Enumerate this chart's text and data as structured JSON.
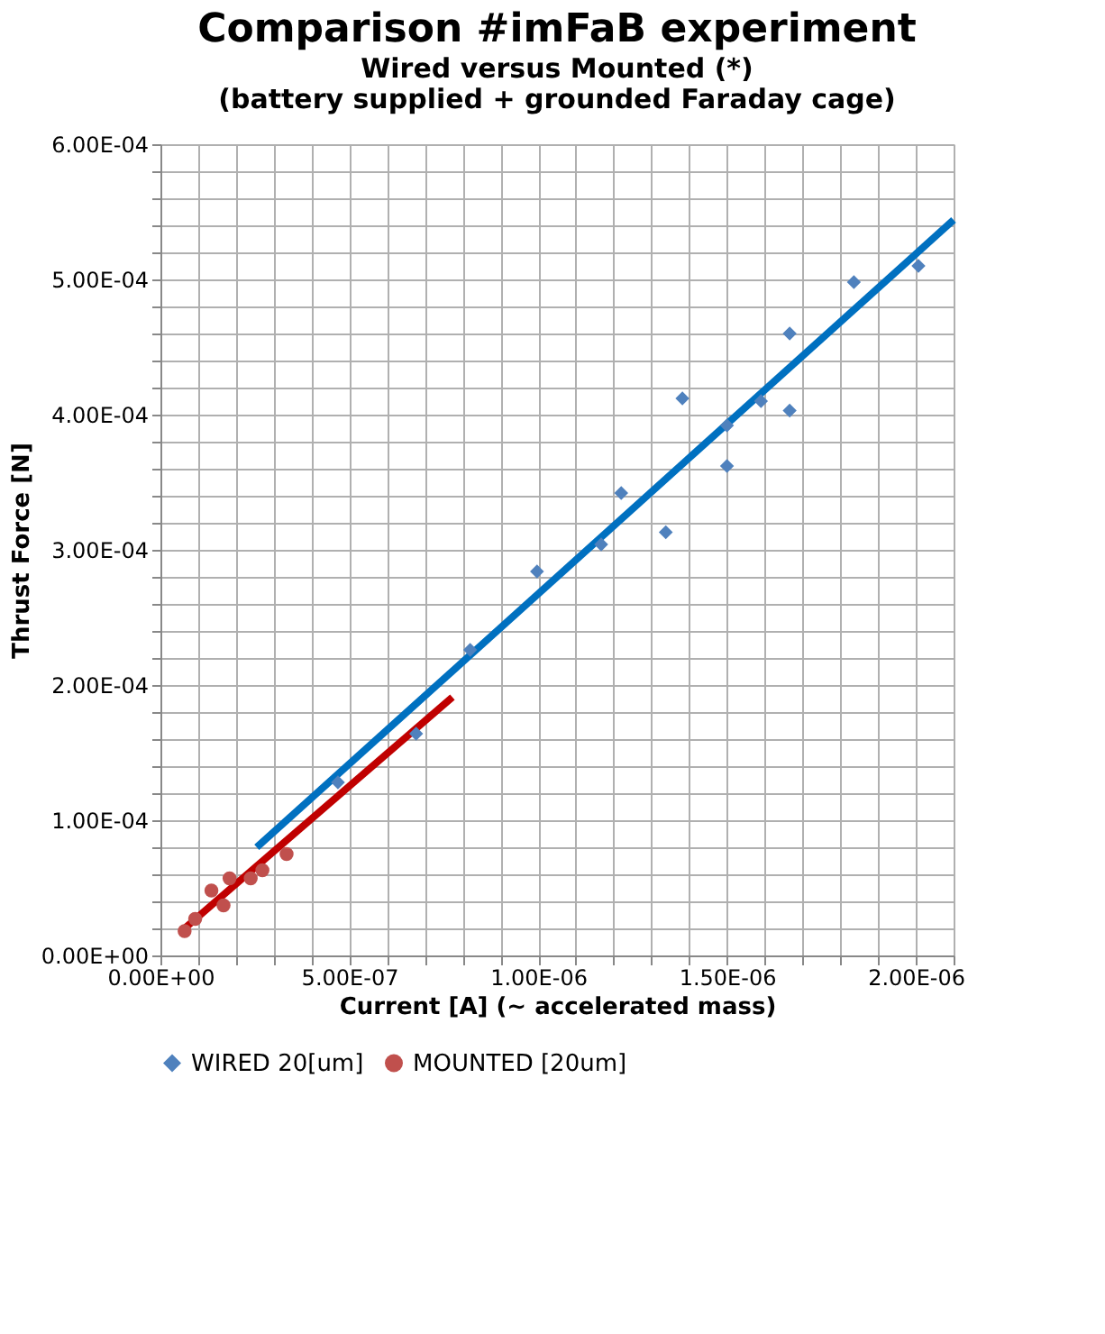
{
  "chart_data": {
    "type": "scatter",
    "title": "Comparison #imFaB experiment",
    "subtitle": "Wired versus Mounted (*)",
    "annotations": [
      "(battery supplied + grounded Faraday cage)"
    ],
    "xlabel": "Current [A] (~ accelerated mass)",
    "ylabel": "Thrust Force [N]",
    "series": [
      {
        "name": "WIRED 20[um]",
        "marker": "diamond",
        "color": "#4f81bd",
        "x": [
          2.007e-06,
          1.836e-06,
          1.666e-06,
          1.666e-06,
          1.59e-06,
          1.5e-06,
          1.5e-06,
          1.382e-06,
          1.22e-06,
          1.338e-06,
          1.167e-06,
          9.97e-07,
          8.2e-07,
          6.77e-07,
          4.7e-07
        ],
        "values": [
          0.00051,
          0.000498,
          0.00046,
          0.000403,
          0.00041,
          0.000392,
          0.000362,
          0.000412,
          0.000342,
          0.000313,
          0.000304,
          0.000284,
          0.000226,
          0.000164,
          0.000128
        ]
      },
      {
        "name": "MOUNTED [20um]",
        "marker": "circle",
        "color": "#c0504d",
        "x": [
          6.4e-08,
          9.2e-08,
          1.35e-07,
          1.67e-07,
          1.83e-07,
          2.39e-07,
          2.7e-07,
          3.34e-07
        ],
        "values": [
          1.8e-05,
          2.7e-05,
          4.8e-05,
          3.7e-05,
          5.7e-05,
          5.7e-05,
          6.3e-05,
          7.5e-05
        ]
      },
      {
        "type": "line",
        "color": "#0070c0",
        "x": [
          2.55e-07,
          2.1e-06
        ],
        "values": [
          8e-05,
          0.000544
        ]
      },
      {
        "type": "line",
        "color": "#c00000",
        "x": [
          6.4e-08,
          7.73e-07
        ],
        "values": [
          2e-05,
          0.000191
        ]
      }
    ],
    "xlim": [
      0,
      2.1e-06
    ],
    "ylim": [
      0,
      0.0006
    ],
    "xticks": [
      {
        "value": 0,
        "label": "0.00E+00"
      },
      {
        "value": 1e-07,
        "label": null
      },
      {
        "value": 2e-07,
        "label": null
      },
      {
        "value": 3e-07,
        "label": null
      },
      {
        "value": 4e-07,
        "label": null
      },
      {
        "value": 5e-07,
        "label": "5.00E-07"
      },
      {
        "value": 6e-07,
        "label": null
      },
      {
        "value": 7e-07,
        "label": null
      },
      {
        "value": 8e-07,
        "label": null
      },
      {
        "value": 9e-07,
        "label": null
      },
      {
        "value": 1e-06,
        "label": "1.00E-06"
      },
      {
        "value": 1.1e-06,
        "label": null
      },
      {
        "value": 1.2e-06,
        "label": null
      },
      {
        "value": 1.3e-06,
        "label": null
      },
      {
        "value": 1.4e-06,
        "label": null
      },
      {
        "value": 1.5e-06,
        "label": "1.50E-06"
      },
      {
        "value": 1.6e-06,
        "label": null
      },
      {
        "value": 1.7e-06,
        "label": null
      },
      {
        "value": 1.8e-06,
        "label": null
      },
      {
        "value": 1.9e-06,
        "label": null
      },
      {
        "value": 2e-06,
        "label": "2.00E-06"
      },
      {
        "value": 2.1e-06,
        "label": null
      }
    ],
    "yticks": [
      {
        "value": 0,
        "label": "0.00E+00"
      },
      {
        "value": 2e-05,
        "label": null
      },
      {
        "value": 4e-05,
        "label": null
      },
      {
        "value": 6e-05,
        "label": null
      },
      {
        "value": 8e-05,
        "label": null
      },
      {
        "value": 0.0001,
        "label": "1.00E-04"
      },
      {
        "value": 0.00012,
        "label": null
      },
      {
        "value": 0.00014,
        "label": null
      },
      {
        "value": 0.00016,
        "label": null
      },
      {
        "value": 0.00018,
        "label": null
      },
      {
        "value": 0.0002,
        "label": "2.00E-04"
      },
      {
        "value": 0.00022,
        "label": null
      },
      {
        "value": 0.00024,
        "label": null
      },
      {
        "value": 0.00026,
        "label": null
      },
      {
        "value": 0.00028,
        "label": null
      },
      {
        "value": 0.0003,
        "label": "3.00E-04"
      },
      {
        "value": 0.00032,
        "label": null
      },
      {
        "value": 0.00034,
        "label": null
      },
      {
        "value": 0.00036,
        "label": null
      },
      {
        "value": 0.00038,
        "label": null
      },
      {
        "value": 0.0004,
        "label": "4.00E-04"
      },
      {
        "value": 0.00042,
        "label": null
      },
      {
        "value": 0.00044,
        "label": null
      },
      {
        "value": 0.00046,
        "label": null
      },
      {
        "value": 0.00048,
        "label": null
      },
      {
        "value": 0.0005,
        "label": "5.00E-04"
      },
      {
        "value": 0.00052,
        "label": null
      },
      {
        "value": 0.00054,
        "label": null
      },
      {
        "value": 0.00056,
        "label": null
      },
      {
        "value": 0.00058,
        "label": null
      },
      {
        "value": 0.0006,
        "label": "6.00E-04"
      }
    ],
    "grid": true,
    "legend": "bottom"
  }
}
